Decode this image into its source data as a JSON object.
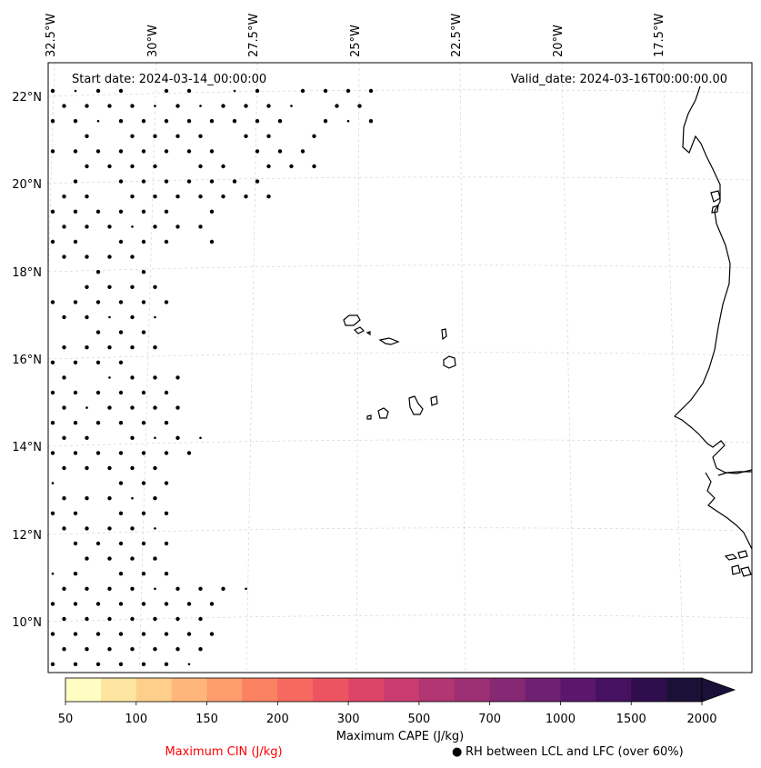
{
  "map": {
    "start_date": "Start date: 2024-03-14_00:00:00",
    "valid_date": "Valid_date: 2024-03-16T00:00:00.00",
    "lon_labels": [
      "32.5°W",
      "30°W",
      "27.5°W",
      "25°W",
      "22.5°W",
      "20°W",
      "17.5°W"
    ],
    "lat_labels": [
      "22°N",
      "20°N",
      "18°N",
      "16°N",
      "14°N",
      "12°N",
      "10°N"
    ],
    "gridlines": true,
    "coastline_color": "#000000"
  },
  "colorbar": {
    "label": "Maximum CAPE (J/kg)",
    "tick_labels": [
      "50",
      "100",
      "150",
      "200",
      "300",
      "500",
      "700",
      "1000",
      "1500",
      "2000"
    ],
    "levels": [
      50,
      75,
      100,
      125,
      150,
      175,
      200,
      250,
      300,
      400,
      500,
      600,
      700,
      850,
      1000,
      1250,
      1500,
      1750,
      2000
    ],
    "colors": [
      "#fffdc1",
      "#fee6a2",
      "#fecf8a",
      "#feb67a",
      "#fd9c6c",
      "#fb8162",
      "#f6695e",
      "#ec5461",
      "#dc4568",
      "#c83c6f",
      "#b23672",
      "#9c2f73",
      "#862974",
      "#702072",
      "#5b176b",
      "#451160",
      "#300e4d",
      "#1b1138"
    ],
    "extend": "max"
  },
  "legend": {
    "cin_label": "Maximum CIN (J/kg)",
    "cin_color": "#ff0000",
    "rh_symbol": "●",
    "rh_label": "RH between LCL and LFC (over 60%)"
  }
}
